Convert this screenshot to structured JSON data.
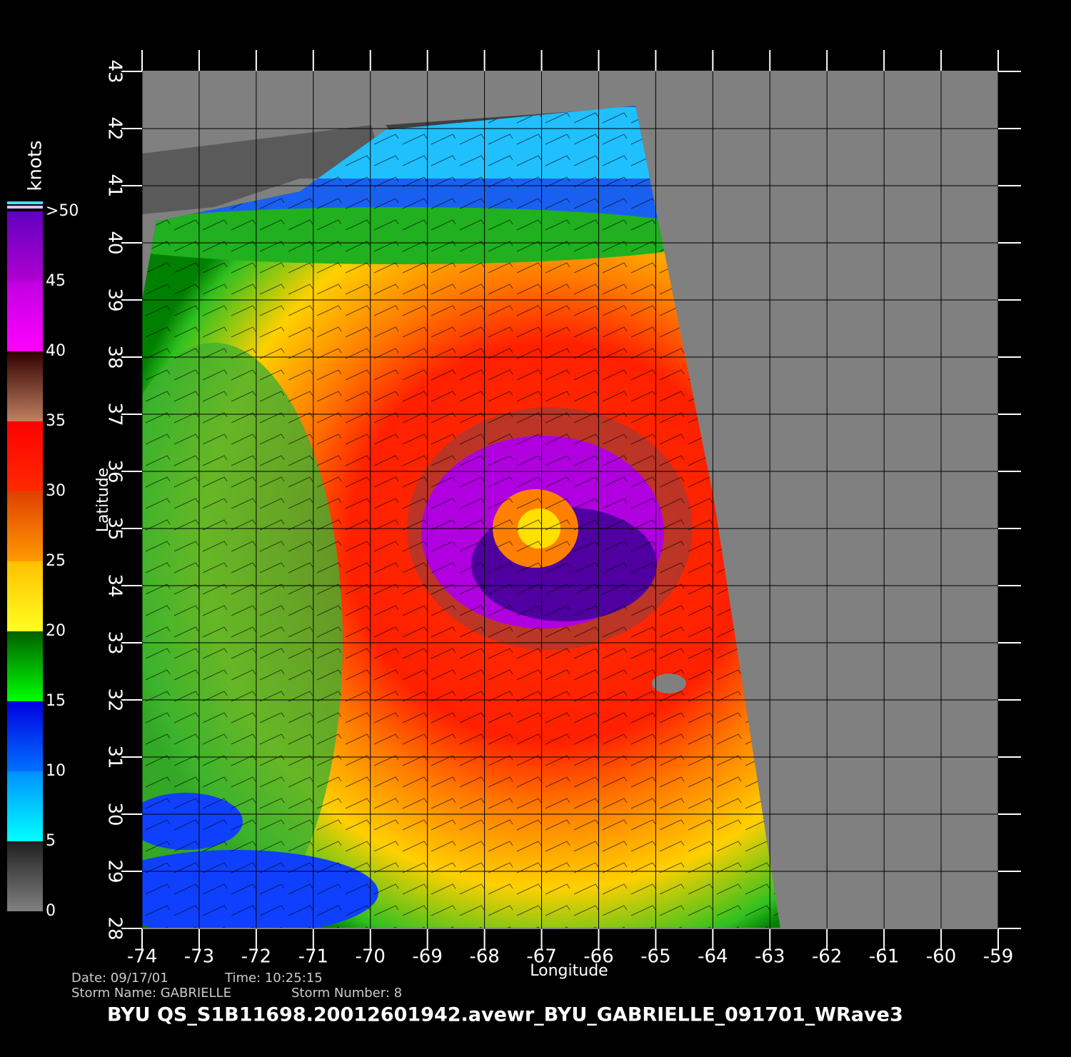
{
  "map": {
    "xlabel": "Longitude",
    "ylabel": "Latitude",
    "xlim": [
      -74,
      -59
    ],
    "ylim": [
      28,
      43
    ],
    "xticks": [
      -74,
      -73,
      -72,
      -71,
      -70,
      -69,
      -68,
      -67,
      -66,
      -65,
      -64,
      -63,
      -62,
      -61,
      -60,
      -59
    ],
    "yticks": [
      28,
      29,
      30,
      31,
      32,
      33,
      34,
      35,
      36,
      37,
      38,
      39,
      40,
      41,
      42,
      43
    ],
    "grid": true,
    "colorbar": {
      "title": "knots",
      "ticks": [
        0,
        5,
        10,
        15,
        20,
        25,
        30,
        35,
        40,
        45,
        {
          "value": 50,
          "label": ">50"
        }
      ],
      "colors": [
        [
          "#808080",
          "#202020"
        ],
        [
          "#00ffff",
          "#0090ff"
        ],
        [
          "#0070ff",
          "#0000e0"
        ],
        [
          "#00ff00",
          "#006000"
        ],
        [
          "#ffff20",
          "#ffc000"
        ],
        [
          "#ff9a00",
          "#e04000"
        ],
        [
          "#ff2a00",
          "#ff0000"
        ],
        [
          "#c08060",
          "#300000"
        ],
        [
          "#ff00ff",
          "#c000e0"
        ],
        [
          "#b000d0",
          "#6000c0"
        ]
      ]
    },
    "footer": {
      "date": "Date: 09/17/01",
      "time": "Time: 10:25:15",
      "storm_name": "Storm Name: GABRIELLE",
      "storm_number": "Storm Number: 8",
      "file": "BYU  QS_S1B11698.20012601942.avewr_BYU_GABRIELLE_091701_WRave3"
    }
  }
}
